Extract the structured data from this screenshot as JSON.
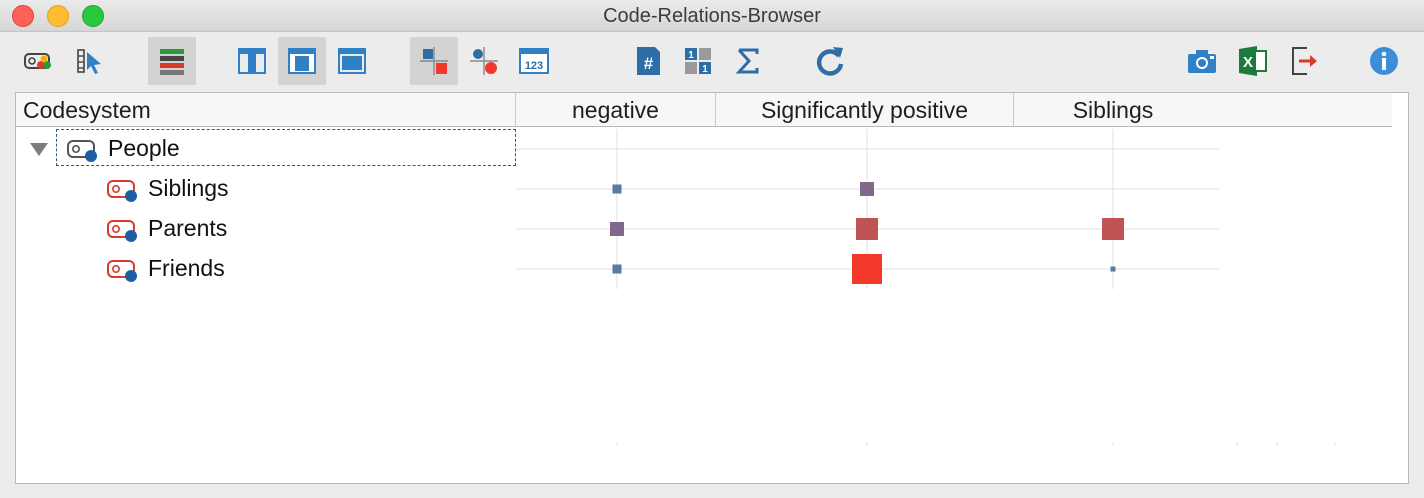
{
  "window": {
    "title": "Code-Relations-Browser"
  },
  "toolbar": {
    "buttons": [
      {
        "name": "code-system-icon",
        "label": "Codes",
        "active": false
      },
      {
        "name": "select-segments-icon",
        "label": "Select",
        "active": false
      },
      {
        "name": "code-colors-icon",
        "label": "Colors",
        "active": true
      },
      {
        "name": "layout-left-icon",
        "label": "Layout left",
        "active": false
      },
      {
        "name": "layout-center-icon",
        "label": "Layout center",
        "active": true
      },
      {
        "name": "layout-full-icon",
        "label": "Layout full",
        "active": false
      },
      {
        "name": "symbol-squares-icon",
        "label": "Squares",
        "active": true
      },
      {
        "name": "symbol-circles-icon",
        "label": "Circles",
        "active": false
      },
      {
        "name": "numbers-icon",
        "label": "123",
        "active": false
      },
      {
        "name": "hash-icon",
        "label": "#",
        "active": false
      },
      {
        "name": "binary-icon",
        "label": "11",
        "active": false
      },
      {
        "name": "sum-icon",
        "label": "Σ",
        "active": false
      },
      {
        "name": "refresh-icon",
        "label": "Refresh",
        "active": false
      },
      {
        "name": "camera-icon",
        "label": "Screenshot",
        "active": false
      },
      {
        "name": "excel-icon",
        "label": "X",
        "active": false
      },
      {
        "name": "export-icon",
        "label": "Export",
        "active": false
      },
      {
        "name": "info-icon",
        "label": "i",
        "active": false
      }
    ]
  },
  "table": {
    "first_header": "Codesystem",
    "columns": [
      "negative",
      "Significantly positive",
      "Siblings"
    ],
    "rows": [
      {
        "label": "People",
        "level": 0,
        "expanded": true,
        "icon": "code-group-icon"
      },
      {
        "label": "Siblings",
        "level": 1,
        "icon": "code-icon"
      },
      {
        "label": "Parents",
        "level": 1,
        "icon": "code-icon"
      },
      {
        "label": "Friends",
        "level": 1,
        "icon": "code-icon"
      }
    ],
    "cells": [
      [
        0,
        0,
        0
      ],
      [
        1,
        2,
        0
      ],
      [
        2,
        3,
        3
      ],
      [
        1,
        4,
        0.5
      ]
    ],
    "colors": {
      "low": "#5e78a4",
      "mid": "#80698a",
      "high": "#c05354",
      "max": "#f2382a"
    }
  }
}
